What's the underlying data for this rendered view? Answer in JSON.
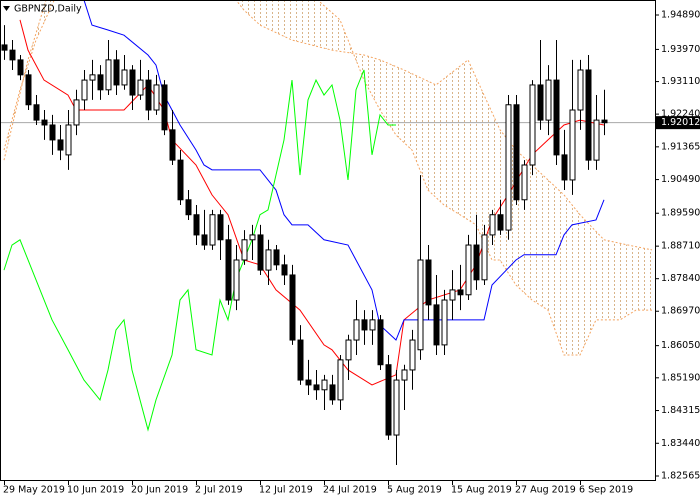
{
  "chart_data": {
    "type": "candlestick",
    "title": "GBPNZD,Daily",
    "categories": [
      "29 May 2019",
      null,
      null,
      null,
      null,
      null,
      null,
      null,
      "10 Jun 2019",
      null,
      null,
      null,
      null,
      null,
      null,
      null,
      "20 Jun 2019",
      null,
      null,
      null,
      null,
      null,
      null,
      null,
      "2 Jul 2019",
      null,
      null,
      null,
      null,
      null,
      null,
      null,
      "12 Jul 2019",
      null,
      null,
      null,
      null,
      null,
      null,
      null,
      "24 Jul 2019",
      null,
      null,
      null,
      null,
      null,
      null,
      null,
      "5 Aug 2019",
      null,
      null,
      null,
      null,
      null,
      null,
      null,
      "15 Aug 2019",
      null,
      null,
      null,
      null,
      null,
      null,
      null,
      "27 Aug 2019",
      null,
      null,
      null,
      null,
      null,
      null,
      null,
      "6 Sep 2019",
      null,
      null,
      null
    ],
    "open": [
      1.9409,
      1.9395,
      1.9369,
      1.9329,
      1.9249,
      1.9208,
      1.9195,
      1.9155,
      1.9115,
      1.9195,
      1.9262,
      1.9315,
      1.9329,
      1.9289,
      1.9369,
      1.9302,
      1.9342,
      1.9275,
      1.9315,
      1.9235,
      1.9302,
      1.9182,
      1.9101,
      1.8995,
      1.8955,
      1.8901,
      1.8874,
      1.8955,
      1.8888,
      1.8727,
      1.8834,
      1.8888,
      1.8901,
      1.8807,
      1.8861,
      1.8821,
      1.8794,
      1.862,
      1.8513,
      1.85,
      1.8487,
      1.85,
      1.846,
      1.8567,
      1.862,
      1.8674,
      1.8647,
      1.8674,
      1.8554,
      1.8366,
      1.8513,
      1.854,
      1.8594,
      1.8834,
      1.8714,
      1.8607,
      1.8727,
      1.8754,
      1.8741,
      1.8874,
      1.8781,
      1.8901,
      1.8955,
      1.8914,
      1.9249,
      1.8995,
      1.9088,
      1.9302,
      1.9208,
      1.9315,
      1.9115,
      1.9048,
      1.9235,
      1.9342,
      1.9101,
      1.9208
    ],
    "high": [
      1.9462,
      1.9422,
      1.9382,
      1.9342,
      1.9275,
      1.9235,
      1.9222,
      1.9195,
      1.9235,
      1.9289,
      1.9342,
      1.9369,
      1.9355,
      1.9422,
      1.9395,
      1.9382,
      1.9355,
      1.9369,
      1.9342,
      1.9329,
      1.9315,
      1.9235,
      1.9128,
      1.9021,
      1.8981,
      1.8968,
      1.8968,
      1.8968,
      1.8928,
      1.8874,
      1.8914,
      1.8928,
      1.8928,
      1.8888,
      1.8874,
      1.8848,
      1.8821,
      1.866,
      1.8567,
      1.854,
      1.8527,
      1.8527,
      1.858,
      1.8634,
      1.8727,
      1.87,
      1.87,
      1.8687,
      1.858,
      1.854,
      1.8554,
      1.8647,
      1.9061,
      1.8874,
      1.8794,
      1.8754,
      1.8807,
      1.8821,
      1.8901,
      1.8955,
      1.8928,
      1.8968,
      1.8995,
      1.9275,
      1.9275,
      1.9101,
      1.9315,
      1.9422,
      1.9355,
      1.9422,
      1.9182,
      1.9369,
      1.9369,
      1.9382,
      1.9275,
      1.9289
    ],
    "low": [
      1.9369,
      1.9342,
      1.9315,
      1.9235,
      1.9195,
      1.9155,
      1.9115,
      1.9101,
      1.9075,
      1.9168,
      1.9235,
      1.9262,
      1.9262,
      1.9275,
      1.9275,
      1.9289,
      1.9235,
      1.9262,
      1.9208,
      1.9222,
      1.9168,
      1.9088,
      1.8981,
      1.8941,
      1.8874,
      1.8861,
      1.8861,
      1.8834,
      1.8714,
      1.87,
      1.8821,
      1.8834,
      1.8794,
      1.8767,
      1.8807,
      1.8767,
      1.8607,
      1.85,
      1.8473,
      1.846,
      1.8433,
      1.8447,
      1.8433,
      1.8513,
      1.858,
      1.8607,
      1.8607,
      1.854,
      1.8353,
      1.8286,
      1.8433,
      1.8487,
      1.8567,
      1.8674,
      1.858,
      1.858,
      1.8674,
      1.87,
      1.8727,
      1.8754,
      1.8767,
      1.8874,
      1.8901,
      1.8888,
      1.8981,
      1.8968,
      1.9061,
      1.9182,
      1.9168,
      1.9088,
      1.9021,
      1.9008,
      1.9182,
      1.9075,
      1.9075,
      1.9168
    ],
    "close": [
      1.9395,
      1.9369,
      1.9329,
      1.9249,
      1.9208,
      1.9195,
      1.9155,
      1.9128,
      1.9195,
      1.9262,
      1.9315,
      1.9329,
      1.9289,
      1.9369,
      1.9302,
      1.9342,
      1.9275,
      1.9315,
      1.9235,
      1.9302,
      1.9182,
      1.9101,
      1.8995,
      1.8955,
      1.8901,
      1.8874,
      1.8955,
      1.8888,
      1.8727,
      1.8834,
      1.8888,
      1.8901,
      1.8807,
      1.8861,
      1.8821,
      1.8794,
      1.862,
      1.8513,
      1.85,
      1.8487,
      1.8513,
      1.846,
      1.8567,
      1.862,
      1.8674,
      1.8647,
      1.8674,
      1.8554,
      1.8366,
      1.8513,
      1.854,
      1.862,
      1.8834,
      1.8714,
      1.8607,
      1.8727,
      1.8754,
      1.8741,
      1.8874,
      1.8781,
      1.8901,
      1.8955,
      1.8914,
      1.9249,
      1.8995,
      1.9088,
      1.9302,
      1.9208,
      1.9315,
      1.9115,
      1.9048,
      1.9235,
      1.9342,
      1.9101,
      1.9208,
      1.9201
    ],
    "up_color": "#ffffff",
    "down_color": "#000000",
    "ylim": [
      1.82458,
      1.95291
    ],
    "yticks": [
      {
        "value": 1.9489,
        "label": "1.94890"
      },
      {
        "value": 1.9397,
        "label": "1.93970"
      },
      {
        "value": 1.9311,
        "label": "1.93110"
      },
      {
        "value": 1.9224,
        "label": "1.92240"
      },
      1.91365,
      {
        "value": 1.9049,
        "label": "1.90490"
      },
      {
        "value": 1.8959,
        "label": "1.89590"
      },
      {
        "value": 1.8871,
        "label": "1.88710"
      },
      {
        "value": 1.8784,
        "label": "1.87840"
      },
      {
        "value": 1.8697,
        "label": "1.86970"
      },
      {
        "value": 1.8605,
        "label": "1.86050"
      },
      {
        "value": 1.8519,
        "label": "1.85190"
      },
      1.84315,
      {
        "value": 1.8344,
        "label": "1.83440"
      },
      1.82565
    ],
    "last_price": 1.92012,
    "overlays": [
      {
        "type": "line",
        "color": "#ff0000",
        "x": [
          2,
          3,
          5,
          8,
          9,
          15,
          18,
          20,
          21,
          24,
          26,
          28,
          30,
          32,
          34,
          37,
          40,
          41,
          43,
          46,
          49,
          50,
          53,
          57,
          59,
          61,
          63,
          66,
          68,
          70,
          72,
          75
        ],
        "values": [
          1.9476,
          1.9395,
          1.9315,
          1.9275,
          1.9235,
          1.9235,
          1.9302,
          1.9235,
          1.9155,
          1.9088,
          1.9008,
          1.8955,
          1.8834,
          1.8821,
          1.8754,
          1.87,
          1.8607,
          1.8594,
          1.854,
          1.85,
          1.8527,
          1.8674,
          1.8727,
          1.8754,
          1.8821,
          1.8941,
          1.9008,
          1.9115,
          1.9155,
          1.9195,
          1.9208,
          1.9195
        ]
      },
      {
        "type": "line",
        "color": "#0000ff",
        "x": [
          10,
          11,
          13,
          15,
          18,
          19,
          20,
          22,
          24,
          25,
          26,
          32,
          34,
          35,
          36,
          38,
          40,
          43,
          44,
          46,
          47,
          49,
          50,
          60,
          61,
          64,
          65,
          69,
          70,
          71,
          74,
          75
        ],
        "values": [
          1.9529,
          1.9462,
          1.9449,
          1.9435,
          1.9382,
          1.9355,
          1.9275,
          1.9195,
          1.9128,
          1.9088,
          1.9075,
          1.9075,
          1.9021,
          1.8955,
          1.8928,
          1.8928,
          1.8888,
          1.8874,
          1.8834,
          1.8754,
          1.866,
          1.862,
          1.8674,
          1.8674,
          1.8767,
          1.8834,
          1.8848,
          1.8848,
          1.8901,
          1.8928,
          1.8941,
          1.8995
        ]
      },
      {
        "type": "line",
        "color": "#00ff00",
        "x": [
          0,
          1,
          2,
          4,
          6,
          8,
          10,
          12,
          13,
          14,
          15,
          16,
          18,
          19,
          21,
          22,
          23,
          24,
          26,
          27,
          28,
          29,
          31,
          32,
          33,
          35,
          36,
          37,
          38,
          39,
          40,
          41,
          42,
          43,
          44,
          45,
          46,
          47,
          48,
          49
        ],
        "values": [
          1.8807,
          1.8874,
          1.8888,
          1.8781,
          1.8674,
          1.8594,
          1.8513,
          1.846,
          1.854,
          1.8647,
          1.8674,
          1.854,
          1.838,
          1.846,
          1.858,
          1.8727,
          1.8754,
          1.8594,
          1.858,
          1.8727,
          1.8674,
          1.8781,
          1.8888,
          1.8955,
          1.8968,
          1.9155,
          1.9315,
          1.9061,
          1.9262,
          1.9315,
          1.9275,
          1.9302,
          1.9208,
          1.9048,
          1.9289,
          1.9342,
          1.9115,
          1.9222,
          1.9195,
          1.9195
        ]
      }
    ],
    "cloud": {
      "color": "#f4a460",
      "fill": "#d8b48a",
      "span_a": {
        "x": [
          0,
          2,
          4,
          6,
          8,
          20,
          35,
          42,
          45,
          47,
          49,
          51,
          53,
          55,
          57,
          59,
          61,
          62,
          64,
          66,
          68,
          70,
          72,
          74,
          77,
          79,
          81
        ],
        "values": [
          1.9128,
          1.9289,
          1.9422,
          1.9516,
          1.9609,
          1.9689,
          1.9609,
          1.9476,
          1.9315,
          1.9235,
          1.9168,
          1.9128,
          1.9021,
          1.8981,
          1.8955,
          1.8928,
          1.8834,
          1.8834,
          1.8767,
          1.8727,
          1.87,
          1.858,
          1.858,
          1.8674,
          1.8674,
          1.87,
          1.87
        ]
      },
      "span_b": {
        "x": [
          0,
          3,
          6,
          20,
          29,
          30,
          32,
          36,
          41,
          45,
          47,
          50,
          54,
          58,
          60,
          62,
          64,
          68,
          70,
          72,
          75,
          78,
          81
        ],
        "values": [
          1.9101,
          1.9369,
          1.9582,
          1.9743,
          1.9529,
          1.9502,
          1.9462,
          1.9422,
          1.9395,
          1.9382,
          1.9369,
          1.9342,
          1.9302,
          1.9369,
          1.9275,
          1.9182,
          1.9128,
          1.9048,
          1.9008,
          1.8955,
          1.8888,
          1.8874,
          1.8861
        ]
      }
    }
  }
}
